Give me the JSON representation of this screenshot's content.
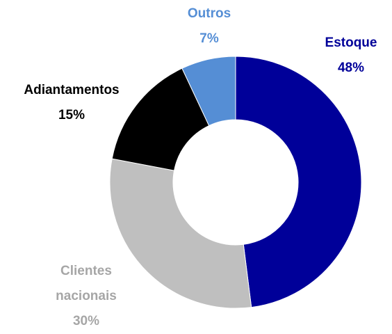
{
  "chart_data": {
    "type": "donut",
    "categories": [
      "Estoque",
      "Clientes nacionais",
      "Adiantamentos",
      "Outros"
    ],
    "values": [
      48,
      30,
      15,
      7
    ],
    "value_labels": [
      "48%",
      "30%",
      "15%",
      "7%"
    ],
    "colors": [
      "#000099",
      "#bfbfbf",
      "#000000",
      "#558ed5"
    ],
    "label_colors": [
      "#000099",
      "#a6a6a6",
      "#000000",
      "#558ed5"
    ]
  }
}
